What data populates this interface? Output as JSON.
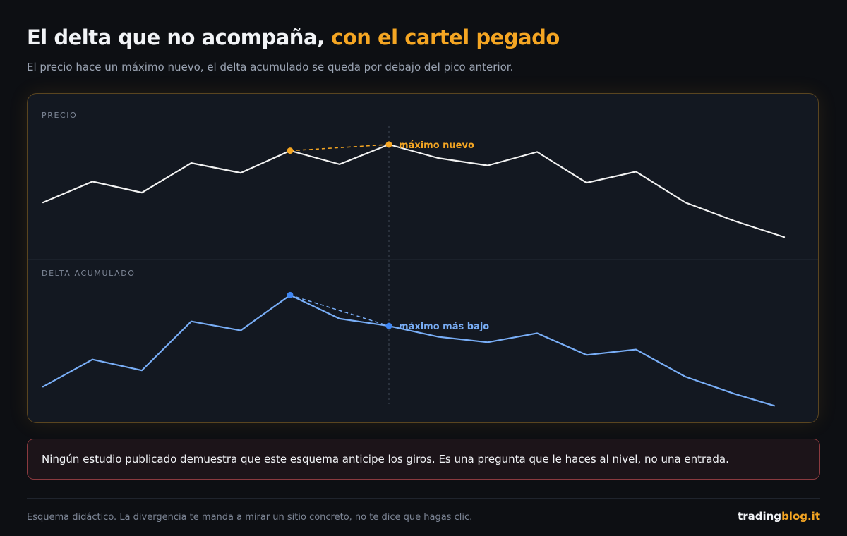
{
  "header": {
    "title_main": "El delta que no acompaña, ",
    "title_accent": "con el cartel pegado",
    "subtitle": "El precio hace un máximo nuevo, el delta acumulado se queda por debajo del pico anterior."
  },
  "chart_data": [
    {
      "type": "line",
      "panel_label": "PRECIO",
      "color": "#f2f2f2",
      "x": [
        0,
        1,
        2,
        3,
        4,
        5,
        6,
        7,
        8,
        9,
        10,
        11,
        12,
        13,
        14,
        15
      ],
      "values": [
        40.5,
        57.5,
        48.5,
        72.5,
        64.5,
        82.5,
        71.5,
        87.5,
        76.5,
        70.5,
        81.5,
        56.5,
        65.5,
        40.5,
        25.5,
        12.5
      ],
      "ylim": [
        0,
        100
      ],
      "annotation": {
        "text": "máximo nuevo",
        "color": "#f5a623",
        "from_index": 5,
        "to_index": 7
      }
    },
    {
      "type": "line",
      "panel_label": "DELTA ACUMULADO",
      "color": "#79aef7",
      "x": [
        0,
        1,
        2,
        3,
        4,
        5,
        6,
        7,
        8,
        9,
        10,
        11,
        12,
        13,
        14,
        14.8
      ],
      "values": [
        27,
        57,
        45,
        99,
        89,
        128,
        102,
        94,
        82,
        76,
        86,
        62,
        68,
        38,
        19,
        6
      ],
      "ylim": [
        0,
        140
      ],
      "annotation": {
        "text": "máximo más bajo",
        "color": "#79aef7",
        "marker_color": "#3f86f3",
        "from_index": 5,
        "to_index": 7
      }
    }
  ],
  "note": {
    "text": "Ningún estudio publicado demuestra que este esquema anticipe los giros. Es una pregunta que le haces al nivel, no una entrada."
  },
  "footer": {
    "text": "Esquema didáctico. La divergencia te manda a mirar un sitio concreto, no te dice que hagas clic.",
    "brand_part1": "trading",
    "brand_part2": "blog.it"
  }
}
